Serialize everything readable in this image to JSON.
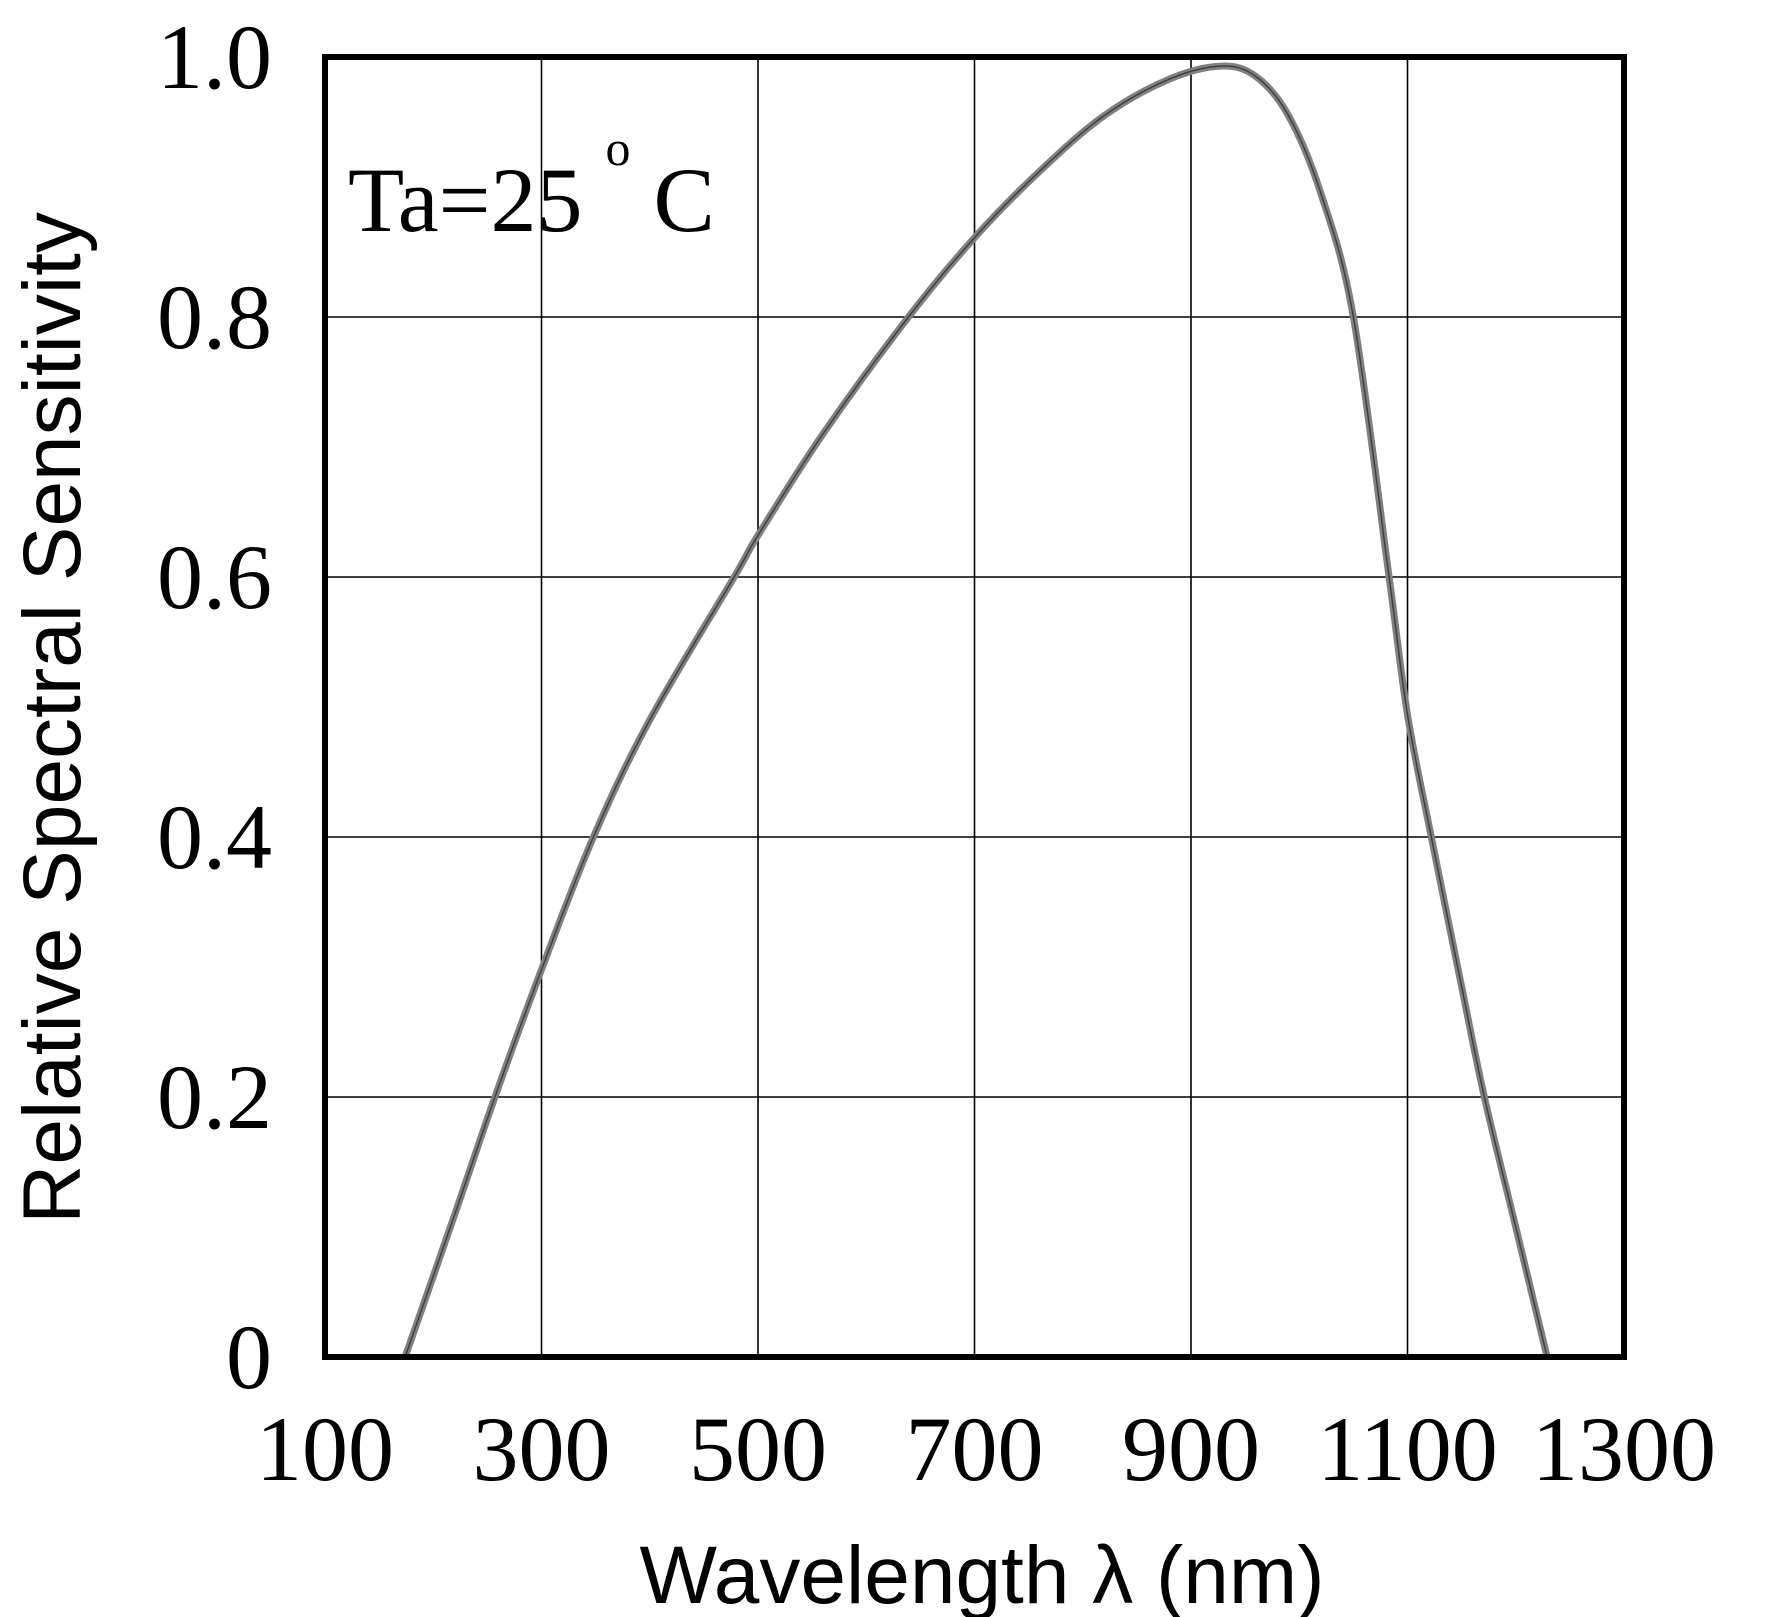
{
  "chart_data": {
    "type": "line",
    "title": "",
    "xlabel": "Wavelength λ (nm)",
    "ylabel": "Relative Spectral Sensitivity",
    "annotation": {
      "text": "Ta=25",
      "superscript": "o",
      "suffix": "C"
    },
    "xlim": [
      100,
      1300
    ],
    "ylim": [
      0,
      1.0
    ],
    "x_ticks": [
      100,
      300,
      500,
      700,
      900,
      1100,
      1300
    ],
    "x_tick_labels": [
      "100",
      "300",
      "500",
      "700",
      "900",
      "1100",
      "1300"
    ],
    "y_ticks": [
      0,
      0.2,
      0.4,
      0.6,
      0.8,
      1.0
    ],
    "y_tick_labels": [
      "0",
      "0.2",
      "0.4",
      "0.6",
      "0.8",
      "1.0"
    ],
    "grid": true,
    "legend": null,
    "series": [
      {
        "name": "Relative Spectral Sensitivity",
        "color": "#808080",
        "x": [
          174,
          220,
          257,
          300,
          348,
          400,
          478,
          500,
          560,
          639,
          700,
          760,
          820,
          880,
          928,
          960,
          990,
          1020,
          1050,
          1083,
          1100,
          1122,
          1150,
          1171,
          1200,
          1229
        ],
        "y": [
          0.0,
          0.11,
          0.2,
          0.298,
          0.4,
          0.49,
          0.6,
          0.632,
          0.71,
          0.8,
          0.861,
          0.912,
          0.955,
          0.983,
          0.993,
          0.985,
          0.955,
          0.895,
          0.8,
          0.6,
          0.494,
          0.4,
          0.285,
          0.2,
          0.1,
          0.0
        ]
      }
    ]
  },
  "colors": {
    "frame": "#000000",
    "grid": "#000000",
    "curve": "#808080",
    "curve_core": "#404040",
    "background": "#ffffff",
    "text": "#000000"
  }
}
